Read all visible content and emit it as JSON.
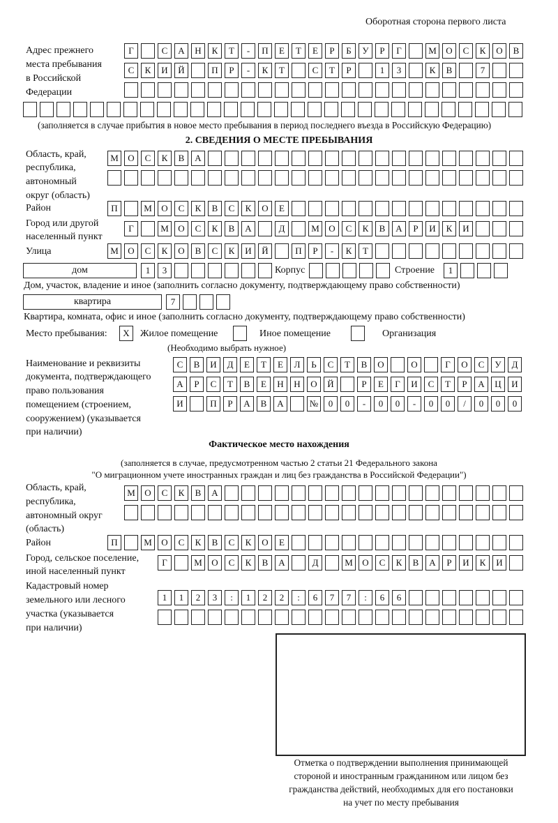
{
  "header": "Оборотная сторона первого листа",
  "previous_address": {
    "label": [
      "Адрес прежнего",
      "места пребывания",
      "в Российской",
      "Федерации"
    ],
    "rows": [
      "Г САНКТ-ПЕТЕРБУРГ МОСКОВ",
      "СКИЙ ПР-КТ СТР 13 КВ 7  ",
      "",
      ""
    ],
    "note": "(заполняется в случае прибытия в новое место пребывания в период последнего въезда в Российскую Федерацию)"
  },
  "section2": {
    "title": "2. СВЕДЕНИЯ О МЕСТЕ ПРЕБЫВАНИЯ",
    "region_label": [
      "Область, край,",
      "республика,",
      "автономный",
      "округ (область)"
    ],
    "region_rows": [
      "МОСКВА",
      ""
    ],
    "district_label": "Район",
    "district": "П МОСКВСКОЕ",
    "city_label": [
      "Город или другой",
      "населенный пункт"
    ],
    "city": "Г МОСКВА Д МОСКВАРИКИ",
    "street_label": "Улица",
    "street": "МОСКОВСКИЙ ПР-КТ",
    "house_type": "дом",
    "house": "13",
    "corpus_label": "Корпус",
    "corpus": "",
    "building_label": "Строение",
    "building": "1",
    "house_note": "Дом, участок, владение и иное (заполнить согласно документу, подтверждающему право собственности)",
    "apt_type": "квартира",
    "apt": "7",
    "apt_note": "Квартира, комната, офис и иное (заполнить согласно документу, подтверждающему право собственности)",
    "place_label": "Место пребывания:",
    "place_options": [
      {
        "label": "Жилое помещение",
        "mark": "X"
      },
      {
        "label": "Иное помещение",
        "mark": ""
      },
      {
        "label": "Организация",
        "mark": ""
      }
    ],
    "place_note": "(Необходимо выбрать нужное)",
    "doc_label": [
      "Наименование и реквизиты",
      "документа, подтверждающего",
      "право пользования",
      "помещением (строением,",
      "сооружением) (указывается",
      "при наличии)"
    ],
    "doc_rows": [
      "СВИДЕТЕЛЬСТВО О ГОСУД",
      "АРСТВЕННОЙ РЕГИСТРАЦИ",
      "И ПРАВА №00-00-00/000"
    ]
  },
  "actual": {
    "title": "Фактическое место нахождения",
    "note": [
      "(заполняется в случае, предусмотренном частью 2 статьи 21 Федерального закона",
      "\"О миграционном учете иностранных граждан и лиц без гражданства в Российской Федерации\")"
    ],
    "region_label": [
      "Область, край,",
      "республика,",
      "автономный округ",
      "(область)"
    ],
    "region_rows": [
      "МОСКВА",
      ""
    ],
    "district_label": "Район",
    "district": "П МОСКВСКОЕ",
    "city_label": [
      "Город, сельское поселение,",
      "иной населенный пункт"
    ],
    "city": "Г МОСКВА Д МОСКВАРИКИ",
    "cadastral_label": [
      "Кадастровый номер",
      "земельного или лесного",
      "участка (указывается",
      "при наличии)"
    ],
    "cadastral_rows": [
      "1123:122:677:66",
      ""
    ]
  },
  "confirmation_caption": [
    "Отметка о подтверждении выполнения принимающей",
    "стороной и иностранным гражданином или лицом без",
    "гражданства действий, необходимых для его постановки",
    "на учет по месту пребывания"
  ]
}
